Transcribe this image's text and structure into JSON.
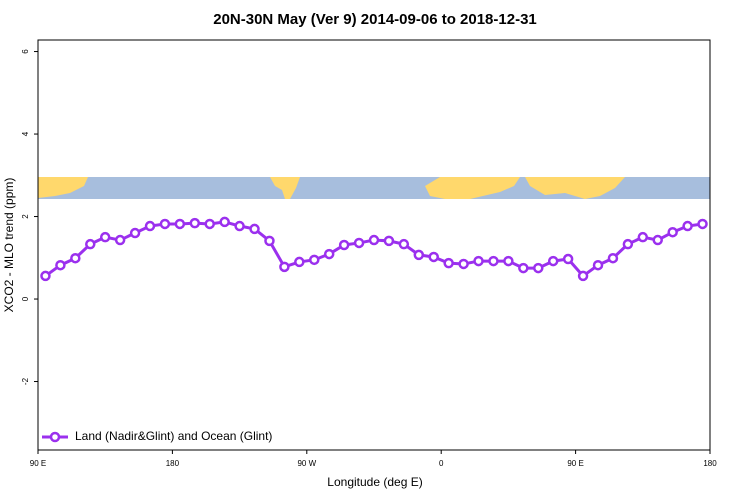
{
  "chart_data": {
    "type": "line",
    "title": "20N-30N May (Ver 9)   2014-09-06 to 2018-12-31",
    "x_label": "Longitude (deg E)",
    "y_label": "XCO2 - MLO trend (ppm)",
    "x": [
      95,
      105,
      115,
      125,
      135,
      145,
      155,
      165,
      175,
      185,
      195,
      205,
      215,
      225,
      235,
      245,
      255,
      265,
      275,
      285,
      295,
      305,
      315,
      325,
      335,
      345,
      355,
      365,
      375,
      385,
      395,
      405,
      415,
      425,
      435,
      445,
      455,
      465,
      475,
      485,
      495,
      505,
      515,
      525,
      535
    ],
    "series": [
      {
        "name": "Land (Nadir&Glint) and Ocean (Glint)",
        "color": "#9b30ee",
        "values": [
          0.56,
          0.82,
          0.99,
          1.33,
          1.5,
          1.43,
          1.6,
          1.77,
          1.82,
          1.82,
          1.84,
          1.82,
          1.87,
          1.77,
          1.7,
          1.41,
          0.78,
          0.9,
          0.95,
          1.09,
          1.31,
          1.36,
          1.43,
          1.41,
          1.33,
          1.07,
          1.02,
          0.87,
          0.85,
          0.92,
          0.92,
          0.92,
          0.75,
          0.75,
          0.92,
          0.97,
          0.56,
          0.82,
          0.99,
          1.33,
          1.5,
          1.43,
          1.62,
          1.77,
          1.82
        ]
      }
    ],
    "xlim": [
      90,
      540
    ],
    "xticks": [
      {
        "value": 90,
        "label": "90 E"
      },
      180,
      {
        "value": 270,
        "label": "90 W"
      },
      {
        "value": 360,
        "label": "0"
      },
      {
        "value": 450,
        "label": "90 E"
      },
      {
        "value": 540,
        "label": "180"
      }
    ],
    "ylim": [
      -3.66,
      6.28
    ],
    "yticks": [
      -2,
      0,
      2,
      4,
      6
    ],
    "legend": "bottom-left"
  }
}
